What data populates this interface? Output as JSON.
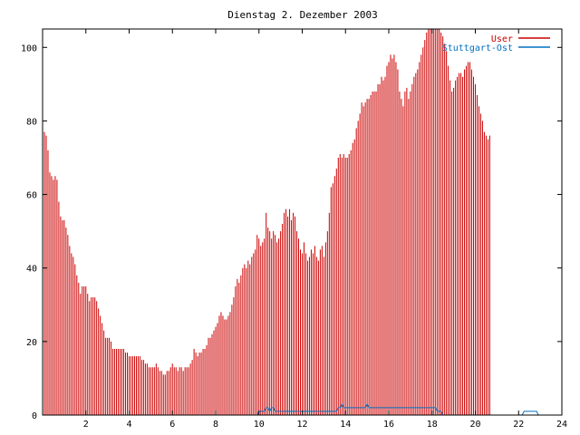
{
  "chart_data": {
    "type": "bar",
    "title": "Dienstag 2. Dezember 2003",
    "xlabel": "",
    "ylabel": "",
    "xlim": [
      0,
      24
    ],
    "ylim": [
      0,
      105
    ],
    "x_ticks": [
      2,
      4,
      6,
      8,
      10,
      12,
      14,
      16,
      18,
      20,
      22,
      24
    ],
    "y_ticks": [
      0,
      20,
      40,
      60,
      80,
      100
    ],
    "grid": false,
    "legend_position": "top-right",
    "series_colors": [
      "#cc0000",
      "#0070c0"
    ],
    "series": [
      {
        "name": "User",
        "x_start": 0,
        "x_step": 0.08333,
        "values": [
          78,
          77,
          76,
          72,
          66,
          65,
          64,
          65,
          64,
          58,
          54,
          53,
          53,
          51,
          49,
          46,
          44,
          43,
          41,
          38,
          36,
          33,
          35,
          35,
          35,
          33,
          31,
          32,
          32,
          32,
          31,
          29,
          27,
          25,
          23,
          21,
          21,
          21,
          20,
          18,
          18,
          18,
          18,
          18,
          18,
          18,
          17,
          17,
          16,
          16,
          16,
          16,
          16,
          16,
          16,
          15,
          15,
          14,
          14,
          13,
          13,
          13,
          13,
          14,
          13,
          12,
          12,
          11,
          11,
          12,
          12,
          13,
          14,
          13,
          13,
          12,
          13,
          13,
          12,
          13,
          13,
          13,
          14,
          15,
          18,
          17,
          16,
          17,
          17,
          18,
          18,
          19,
          21,
          21,
          22,
          23,
          24,
          25,
          27,
          28,
          27,
          26,
          26,
          27,
          28,
          30,
          32,
          35,
          37,
          36,
          38,
          40,
          41,
          40,
          42,
          41,
          43,
          44,
          45,
          49,
          48,
          46,
          47,
          48,
          55,
          51,
          50,
          48,
          50,
          49,
          47,
          48,
          50,
          52,
          55,
          56,
          54,
          56,
          53,
          55,
          54,
          50,
          48,
          45,
          44,
          47,
          44,
          42,
          43,
          45,
          44,
          46,
          43,
          42,
          45,
          46,
          43,
          47,
          50,
          55,
          62,
          63,
          65,
          67,
          70,
          71,
          70,
          71,
          70,
          70,
          71,
          72,
          74,
          75,
          78,
          80,
          82,
          85,
          84,
          85,
          86,
          86,
          87,
          88,
          88,
          88,
          90,
          90,
          92,
          91,
          92,
          95,
          96,
          98,
          97,
          98,
          96,
          94,
          88,
          86,
          84,
          88,
          89,
          86,
          88,
          90,
          92,
          93,
          94,
          96,
          98,
          100,
          102,
          104,
          105,
          105,
          105,
          105,
          105,
          105,
          105,
          104,
          103,
          101,
          99,
          95,
          91,
          88,
          89,
          91,
          92,
          93,
          93,
          92,
          94,
          95,
          96,
          96,
          94,
          92,
          90,
          87,
          84,
          82,
          80,
          77,
          76,
          75,
          76
        ]
      },
      {
        "name": "Stuttgart-Ost",
        "x_start": 0,
        "x_step": 0.08333,
        "values": [
          0,
          0,
          0,
          0,
          0,
          0,
          0,
          0,
          0,
          0,
          0,
          0,
          0,
          0,
          0,
          0,
          0,
          0,
          0,
          0,
          0,
          0,
          0,
          0,
          0,
          0,
          0,
          0,
          0,
          0,
          0,
          0,
          0,
          0,
          0,
          0,
          0,
          0,
          0,
          0,
          0,
          0,
          0,
          0,
          0,
          0,
          0,
          0,
          0,
          0,
          0,
          0,
          0,
          0,
          0,
          0,
          0,
          0,
          0,
          0,
          0,
          0,
          0,
          0,
          0,
          0,
          0,
          0,
          0,
          0,
          0,
          0,
          0,
          0,
          0,
          0,
          0,
          0,
          0,
          0,
          0,
          0,
          0,
          0,
          0,
          0,
          0,
          0,
          0,
          0,
          0,
          0,
          0,
          0,
          0,
          0,
          0,
          0,
          0,
          0,
          0,
          0,
          0,
          0,
          0,
          0,
          0,
          0,
          0,
          0,
          0,
          0,
          0,
          0,
          0,
          0,
          0,
          0,
          0,
          0,
          1,
          1,
          1,
          1,
          2,
          2,
          1,
          2,
          2,
          1,
          1,
          1,
          1,
          1,
          1,
          1,
          1,
          1,
          1,
          1,
          1,
          1,
          1,
          1,
          1,
          1,
          1,
          1,
          1,
          1,
          1,
          1,
          1,
          1,
          1,
          1,
          1,
          1,
          1,
          1,
          1,
          1,
          1,
          1,
          2,
          2,
          3,
          2,
          2,
          2,
          2,
          2,
          2,
          2,
          2,
          2,
          2,
          2,
          2,
          2,
          3,
          2,
          2,
          2,
          2,
          2,
          2,
          2,
          2,
          2,
          2,
          2,
          2,
          2,
          2,
          2,
          2,
          2,
          2,
          2,
          2,
          2,
          2,
          2,
          2,
          2,
          2,
          2,
          2,
          2,
          2,
          2,
          2,
          2,
          2,
          2,
          2,
          2,
          2,
          1,
          1,
          1,
          0,
          0,
          0,
          0,
          0,
          0,
          0,
          0,
          0,
          0,
          0,
          0,
          0,
          0,
          0,
          0,
          0,
          0,
          0,
          0,
          0,
          0,
          0,
          0,
          0,
          0,
          0,
          0,
          0,
          0,
          0,
          0,
          0,
          0,
          0,
          0,
          0,
          0,
          0,
          0,
          0,
          0,
          0,
          0,
          0,
          1,
          1,
          1,
          1,
          1,
          1,
          1,
          1,
          0,
          0,
          0,
          0,
          0,
          0
        ]
      }
    ]
  }
}
